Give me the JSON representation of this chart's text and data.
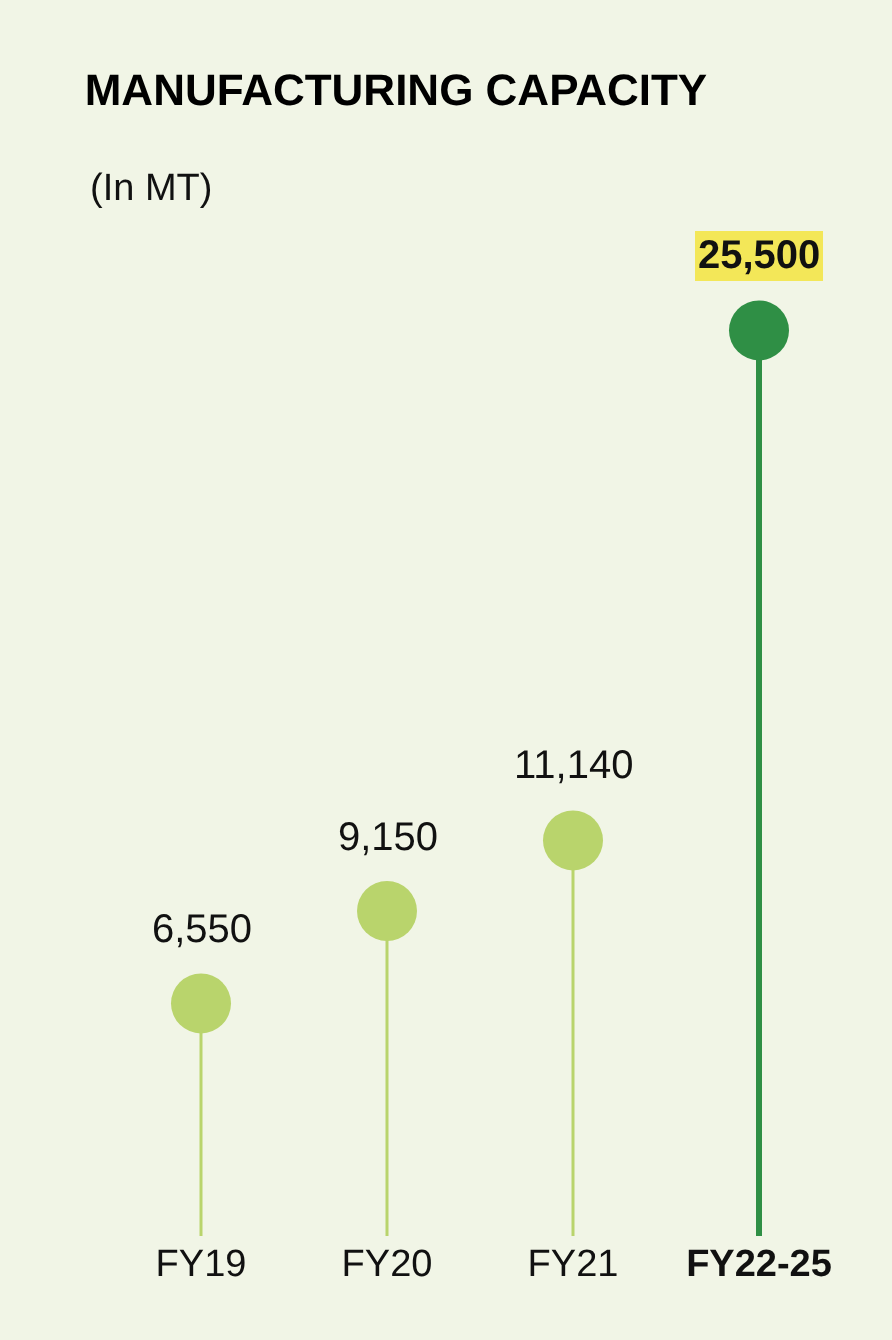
{
  "chart_data": {
    "type": "lollipop",
    "title": "MANUFACTURING CAPACITY",
    "subtitle": "(In MT)",
    "categories": [
      "FY19",
      "FY20",
      "FY21",
      "FY22-25"
    ],
    "values": [
      6550,
      9150,
      11140,
      25500
    ],
    "colors": [
      "#b9d46c",
      "#b9d46c",
      "#b9d46c",
      "#2f8f45"
    ],
    "value_labels": [
      "6,550",
      "9,150",
      "11,140",
      "25,500"
    ]
  }
}
